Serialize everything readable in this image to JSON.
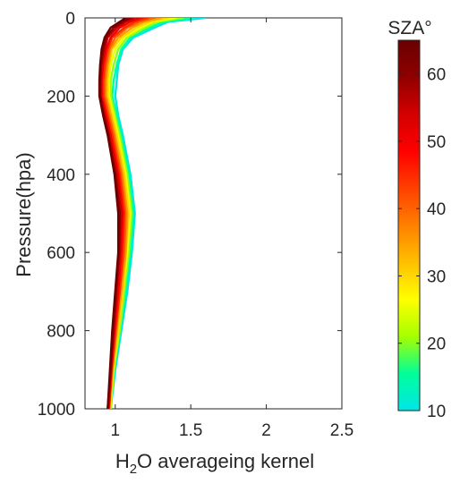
{
  "chart_data": {
    "type": "line",
    "xlabel": {
      "base": "H",
      "sub": "2",
      "rest": "O averageing kernel"
    },
    "ylabel": "Pressure(hpa)",
    "xlim": [
      0.8,
      2.5
    ],
    "ylim": [
      1000,
      0
    ],
    "y_reversed": true,
    "xticks": [
      1,
      1.5,
      2,
      2.5
    ],
    "xtick_labels": [
      "1",
      "1.5",
      "2",
      "2.5"
    ],
    "yticks": [
      0,
      200,
      400,
      600,
      800,
      1000
    ],
    "ytick_labels": [
      "0",
      "200",
      "400",
      "600",
      "800",
      "1000"
    ],
    "grid": false,
    "colorbar": {
      "title": "SZA°",
      "range": [
        10,
        65
      ],
      "ticks": [
        10,
        20,
        30,
        40,
        50,
        60
      ],
      "tick_labels": [
        "10",
        "20",
        "30",
        "40",
        "50",
        "60"
      ],
      "colormap": "jet-upper",
      "stops": [
        "#00e5e8",
        "#00ff99",
        "#a6ff00",
        "#ffff00",
        "#ffc000",
        "#ff8000",
        "#ff4000",
        "#ff0000",
        "#d40000",
        "#900000",
        "#6a0000"
      ]
    },
    "series": [
      {
        "sza": 10,
        "pressure": [
          0,
          10,
          25,
          50,
          80,
          120,
          160,
          200,
          250,
          300,
          400,
          500,
          600,
          700,
          800,
          900,
          1000
        ],
        "ak": [
          1.59,
          1.35,
          1.26,
          1.12,
          1.05,
          1.02,
          1.01,
          1.0,
          1.02,
          1.05,
          1.1,
          1.13,
          1.11,
          1.08,
          1.04,
          1.0,
          0.97
        ]
      },
      {
        "sza": 15,
        "pressure": [
          0,
          10,
          25,
          50,
          80,
          120,
          160,
          200,
          250,
          300,
          400,
          500,
          600,
          700,
          800,
          900,
          1000
        ],
        "ak": [
          1.52,
          1.32,
          1.23,
          1.1,
          1.04,
          1.01,
          0.99,
          0.98,
          1.01,
          1.04,
          1.09,
          1.12,
          1.1,
          1.07,
          1.03,
          0.995,
          0.97
        ]
      },
      {
        "sza": 20,
        "pressure": [
          0,
          10,
          25,
          50,
          80,
          120,
          160,
          200,
          250,
          300,
          400,
          500,
          600,
          700,
          800,
          900,
          1000
        ],
        "ak": [
          1.45,
          1.28,
          1.2,
          1.08,
          1.02,
          0.99,
          0.97,
          0.97,
          1.0,
          1.03,
          1.08,
          1.11,
          1.09,
          1.06,
          1.03,
          0.99,
          0.97
        ]
      },
      {
        "sza": 25,
        "pressure": [
          0,
          10,
          25,
          50,
          80,
          120,
          160,
          200,
          250,
          300,
          400,
          500,
          600,
          700,
          800,
          900,
          1000
        ],
        "ak": [
          1.4,
          1.25,
          1.17,
          1.06,
          1.0,
          0.97,
          0.96,
          0.96,
          0.99,
          1.02,
          1.07,
          1.1,
          1.08,
          1.05,
          1.02,
          0.99,
          0.965
        ]
      },
      {
        "sza": 30,
        "pressure": [
          0,
          10,
          25,
          50,
          80,
          120,
          160,
          200,
          250,
          300,
          400,
          500,
          600,
          700,
          800,
          900,
          1000
        ],
        "ak": [
          1.35,
          1.22,
          1.14,
          1.04,
          0.98,
          0.96,
          0.95,
          0.95,
          0.98,
          1.01,
          1.06,
          1.09,
          1.07,
          1.05,
          1.02,
          0.985,
          0.965
        ]
      },
      {
        "sza": 35,
        "pressure": [
          0,
          10,
          25,
          50,
          80,
          120,
          160,
          200,
          250,
          300,
          400,
          500,
          600,
          700,
          800,
          900,
          1000
        ],
        "ak": [
          1.3,
          1.19,
          1.11,
          1.02,
          0.97,
          0.95,
          0.94,
          0.94,
          0.97,
          1.0,
          1.05,
          1.08,
          1.07,
          1.04,
          1.01,
          0.98,
          0.96
        ]
      },
      {
        "sza": 40,
        "pressure": [
          0,
          10,
          25,
          50,
          80,
          120,
          160,
          200,
          250,
          300,
          400,
          500,
          600,
          700,
          800,
          900,
          1000
        ],
        "ak": [
          1.25,
          1.16,
          1.08,
          1.0,
          0.96,
          0.94,
          0.93,
          0.93,
          0.96,
          0.99,
          1.04,
          1.07,
          1.06,
          1.03,
          1.005,
          0.98,
          0.96
        ]
      },
      {
        "sza": 45,
        "pressure": [
          0,
          10,
          25,
          50,
          80,
          120,
          160,
          200,
          250,
          300,
          400,
          500,
          600,
          700,
          800,
          900,
          1000
        ],
        "ak": [
          1.21,
          1.13,
          1.06,
          0.98,
          0.95,
          0.93,
          0.92,
          0.92,
          0.95,
          0.98,
          1.03,
          1.06,
          1.05,
          1.03,
          1.0,
          0.975,
          0.96
        ]
      },
      {
        "sza": 50,
        "pressure": [
          0,
          10,
          25,
          50,
          80,
          120,
          160,
          200,
          250,
          300,
          400,
          500,
          600,
          700,
          800,
          900,
          1000
        ],
        "ak": [
          1.17,
          1.1,
          1.03,
          0.97,
          0.94,
          0.92,
          0.91,
          0.91,
          0.94,
          0.97,
          1.02,
          1.05,
          1.04,
          1.02,
          0.995,
          0.975,
          0.955
        ]
      },
      {
        "sza": 55,
        "pressure": [
          0,
          10,
          25,
          50,
          80,
          120,
          160,
          200,
          250,
          300,
          400,
          500,
          600,
          700,
          800,
          900,
          1000
        ],
        "ak": [
          1.13,
          1.07,
          1.01,
          0.95,
          0.93,
          0.91,
          0.905,
          0.905,
          0.93,
          0.96,
          1.01,
          1.04,
          1.03,
          1.01,
          0.99,
          0.97,
          0.955
        ]
      },
      {
        "sza": 60,
        "pressure": [
          0,
          10,
          25,
          50,
          80,
          120,
          160,
          200,
          250,
          300,
          400,
          500,
          600,
          700,
          800,
          900,
          1000
        ],
        "ak": [
          1.1,
          1.05,
          0.99,
          0.94,
          0.92,
          0.905,
          0.9,
          0.9,
          0.925,
          0.955,
          1.0,
          1.03,
          1.025,
          1.005,
          0.985,
          0.97,
          0.95
        ]
      },
      {
        "sza": 65,
        "pressure": [
          0,
          10,
          25,
          50,
          80,
          120,
          160,
          200,
          250,
          300,
          400,
          500,
          600,
          700,
          800,
          900,
          1000
        ],
        "ak": [
          1.07,
          1.03,
          0.97,
          0.93,
          0.91,
          0.9,
          0.895,
          0.895,
          0.92,
          0.95,
          0.995,
          1.02,
          1.02,
          1.0,
          0.98,
          0.965,
          0.95
        ]
      }
    ]
  }
}
